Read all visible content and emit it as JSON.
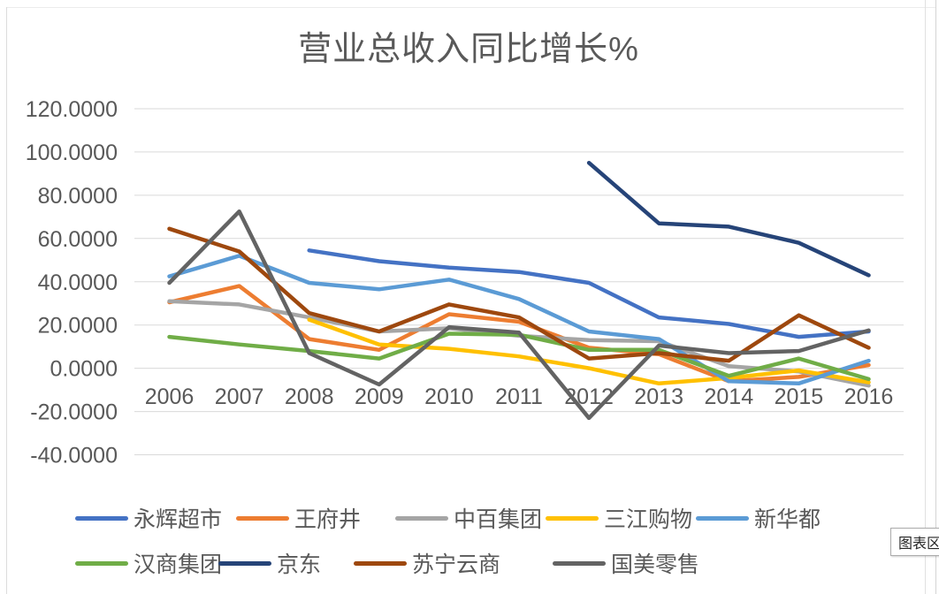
{
  "title": "营业总收入同比增长%",
  "tooltip": {
    "text": "图表区"
  },
  "chart_data": {
    "type": "line",
    "title": "营业总收入同比增长%",
    "unit": "%",
    "categories": [
      "2006",
      "2007",
      "2008",
      "2009",
      "2010",
      "2011",
      "2012",
      "2013",
      "2014",
      "2015",
      "2016"
    ],
    "ylim": [
      -40,
      120
    ],
    "y_ticks": [
      120,
      100,
      80,
      60,
      40,
      20,
      0,
      -20,
      -40
    ],
    "y_tick_labels": [
      "120.0000",
      "100.0000",
      "80.0000",
      "60.0000",
      "40.0000",
      "20.0000",
      "0.0000",
      "-20.0000",
      "-40.0000"
    ],
    "grid": true,
    "legend_position": "bottom",
    "series": [
      {
        "name": "永辉超市",
        "color": "#4472C4",
        "values": [
          null,
          null,
          54.5,
          49.5,
          46.5,
          44.5,
          39.5,
          23.5,
          20.5,
          14.5,
          17
        ]
      },
      {
        "name": "王府井",
        "color": "#ED7D31",
        "values": [
          30.5,
          38,
          13.5,
          8.5,
          25,
          21.5,
          9.5,
          6.5,
          -6,
          -4,
          1.5
        ]
      },
      {
        "name": "中百集团",
        "color": "#A5A5A5",
        "values": [
          31,
          29.5,
          23.5,
          17,
          18.5,
          15,
          13,
          12.5,
          1,
          -1.5,
          -8
        ]
      },
      {
        "name": "三江购物",
        "color": "#FFC000",
        "values": [
          null,
          null,
          22.5,
          11,
          9,
          5.5,
          0,
          -7,
          -4.5,
          -1,
          -6.5
        ]
      },
      {
        "name": "新华都",
        "color": "#5B9BD5",
        "values": [
          42.5,
          52,
          39.5,
          36.5,
          41,
          32,
          17,
          13.5,
          -6,
          -7,
          3.5
        ]
      },
      {
        "name": "汉商集团",
        "color": "#70AD47",
        "values": [
          14.5,
          11,
          8,
          4.5,
          16,
          15.5,
          8.5,
          8.5,
          -3.5,
          4.5,
          -5
        ]
      },
      {
        "name": "京东",
        "color": "#264478",
        "values": [
          null,
          null,
          null,
          null,
          null,
          null,
          95,
          67,
          65.5,
          58,
          43
        ]
      },
      {
        "name": "苏宁云商",
        "color": "#9E480E",
        "values": [
          64.5,
          54,
          25.5,
          17,
          29.5,
          23.5,
          4.5,
          7,
          3.5,
          24.5,
          9.5
        ]
      },
      {
        "name": "国美零售",
        "color": "#636363",
        "values": [
          39.5,
          72.5,
          7,
          -7.5,
          19,
          16.5,
          -23,
          10.5,
          7,
          8,
          17.5
        ]
      }
    ]
  }
}
